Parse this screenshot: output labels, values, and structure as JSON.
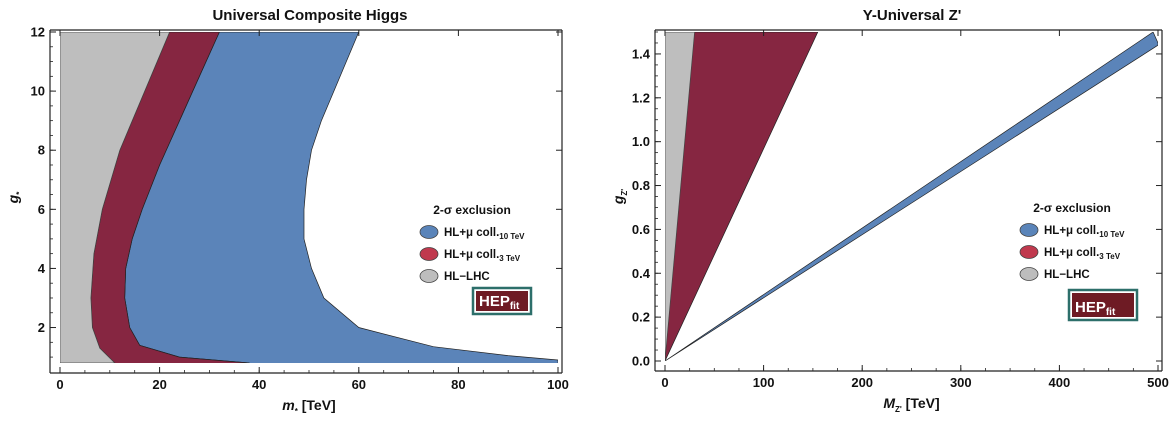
{
  "chart_data": [
    {
      "type": "area",
      "title": "Universal Composite Higgs",
      "xlabel": {
        "symbol": "m",
        "subscript": "*",
        "unit": " [TeV]"
      },
      "ylabel": {
        "symbol": "g",
        "subscript": "*"
      },
      "xlim": [
        0,
        100
      ],
      "ylim": [
        0.8,
        12
      ],
      "xticks": [
        0,
        20,
        40,
        60,
        80,
        100
      ],
      "yticks": [
        2,
        4,
        6,
        8,
        10,
        12
      ],
      "legend": {
        "title": "2-σ exclusion",
        "placement": "right-middle",
        "entries": [
          {
            "label": "HL+μ coll.",
            "sub": "10 TeV",
            "color": "#5a84b9"
          },
          {
            "label": "HL+μ coll.",
            "sub": "3 TeV",
            "color": "#c0394e"
          },
          {
            "label": "HL−LHC",
            "color": "#bdbdbd"
          }
        ]
      },
      "logo": {
        "main": "HEP",
        "sub": "fit"
      },
      "series": [
        {
          "name": "HL+μ coll.10 TeV",
          "color": "#5b84b9",
          "boundary": [
            [
              60,
              12
            ],
            [
              57.5,
              11
            ],
            [
              55,
              10
            ],
            [
              52.5,
              9
            ],
            [
              50.5,
              8
            ],
            [
              49.5,
              7
            ],
            [
              49,
              6
            ],
            [
              49,
              5
            ],
            [
              50.5,
              4
            ],
            [
              53,
              3
            ],
            [
              60,
              2
            ],
            [
              75,
              1.35
            ],
            [
              90,
              1.05
            ],
            [
              100,
              0.9
            ]
          ],
          "fill_to": "hl3"
        },
        {
          "name": "HL+μ coll.3 TeV",
          "color": "#862641",
          "boundary": [
            [
              32,
              12
            ],
            [
              28,
              10.5
            ],
            [
              24,
              9
            ],
            [
              20,
              7.5
            ],
            [
              16.5,
              6
            ],
            [
              14.5,
              5
            ],
            [
              13.2,
              4
            ],
            [
              13,
              3
            ],
            [
              14,
              2
            ],
            [
              16,
              1.4
            ],
            [
              24,
              1
            ],
            [
              38,
              0.8
            ]
          ],
          "fill_to": "lhc"
        },
        {
          "name": "HL-LHC",
          "color": "#bebebe",
          "boundary": [
            [
              22,
              12
            ],
            [
              17,
              10
            ],
            [
              12,
              8
            ],
            [
              8.5,
              6
            ],
            [
              6.8,
              4.5
            ],
            [
              6.2,
              3
            ],
            [
              6.5,
              2
            ],
            [
              8,
              1.3
            ],
            [
              11,
              0.8
            ]
          ],
          "fill_to": "left"
        }
      ]
    },
    {
      "type": "area",
      "title": "Y-Universal Z'",
      "xlabel": {
        "symbol": "M",
        "subscript": "Z'",
        "unit": " [TeV]"
      },
      "ylabel": {
        "symbol": "g",
        "subscript": "Z'"
      },
      "xlim": [
        0,
        500
      ],
      "ylim": [
        0,
        1.5
      ],
      "xticks": [
        0,
        100,
        200,
        300,
        400,
        500
      ],
      "yticks": [
        0.0,
        0.2,
        0.4,
        0.6,
        0.8,
        1.0,
        1.2,
        1.4
      ],
      "legend": {
        "title": "2-σ exclusion",
        "placement": "right-middle",
        "entries": [
          {
            "label": "HL+μ coll.",
            "sub": "10 TeV",
            "color": "#5a84b9"
          },
          {
            "label": "HL+μ coll.",
            "sub": "3 TeV",
            "color": "#c0394e"
          },
          {
            "label": "HL−LHC",
            "color": "#bdbdbd"
          }
        ]
      },
      "logo": {
        "main": "HEP",
        "sub": "fit"
      },
      "series": [
        {
          "name": "HL+μ coll.10 TeV",
          "color": "#5b84b9",
          "boundary": [
            [
              0,
              0
            ],
            [
              495,
              1.5
            ],
            [
              500,
              1.45
            ],
            [
              500,
              1.44
            ]
          ]
        },
        {
          "name": "HL+μ coll.3 TeV",
          "color": "#862641",
          "boundary": [
            [
              0,
              0
            ],
            [
              155,
              1.5
            ]
          ]
        },
        {
          "name": "HL-LHC",
          "color": "#bebebe",
          "boundary": [
            [
              0,
              0
            ],
            [
              30,
              1.5
            ]
          ]
        }
      ]
    }
  ]
}
